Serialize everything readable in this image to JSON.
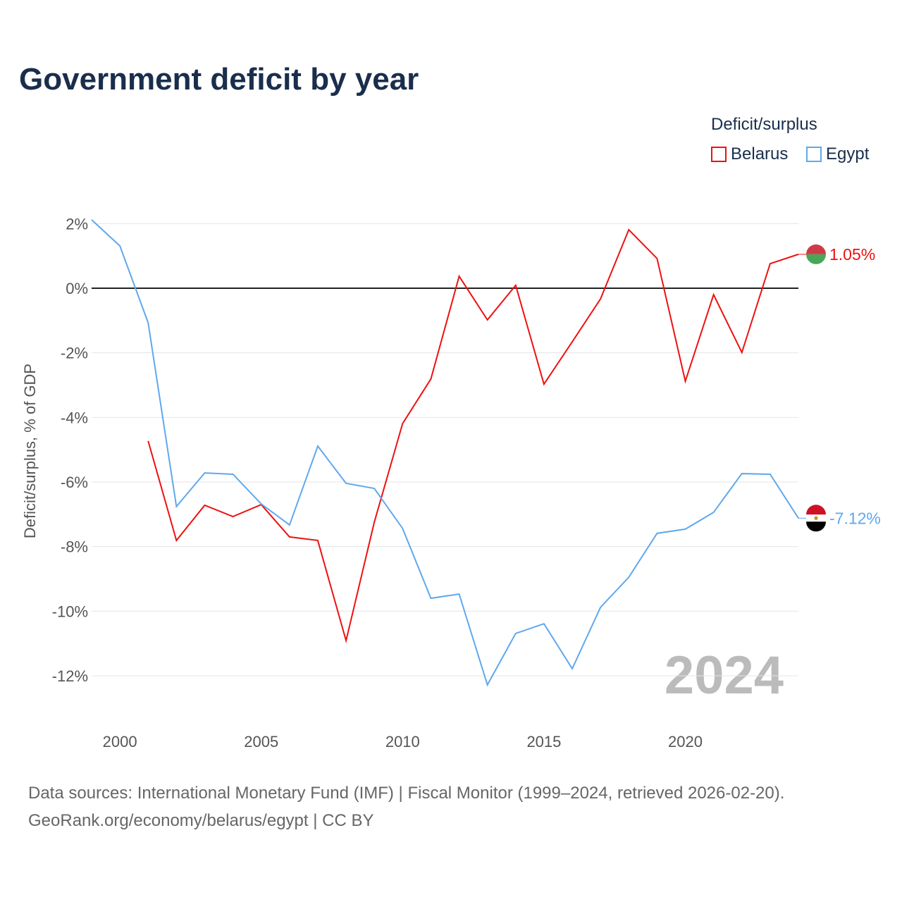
{
  "title": "Government deficit by year",
  "legend": {
    "title": "Deficit/surplus",
    "items": [
      "Belarus",
      "Egypt"
    ]
  },
  "watermark_year": "2024",
  "sources": [
    "Data sources: International Monetary Fund (IMF) | Fiscal Monitor (1999–2024, retrieved 2026-02-20).",
    "GeoRank.org/economy/belarus/egypt | CC BY"
  ],
  "chart_data": {
    "type": "line",
    "title": "Government deficit by year",
    "xlabel": "",
    "ylabel": "Deficit/surplus, % of GDP",
    "xlim": [
      1999,
      2024
    ],
    "ylim": [
      -13.5,
      2.2
    ],
    "xticks": [
      2000,
      2005,
      2010,
      2015,
      2020
    ],
    "yticks": [
      2,
      0,
      -2,
      -4,
      -6,
      -8,
      -10,
      -12
    ],
    "ytick_labels": [
      "2%",
      "0%",
      "-2%",
      "-4%",
      "-6%",
      "-8%",
      "-10%",
      "-12%"
    ],
    "series": [
      {
        "name": "Belarus",
        "color": "#ee1111",
        "end_label": "1.05%",
        "x": [
          2001,
          2002,
          2003,
          2004,
          2005,
          2006,
          2007,
          2008,
          2009,
          2010,
          2011,
          2012,
          2013,
          2014,
          2015,
          2016,
          2017,
          2018,
          2019,
          2020,
          2021,
          2022,
          2023,
          2024
        ],
        "values": [
          -4.73,
          -7.81,
          -6.72,
          -7.07,
          -6.7,
          -7.7,
          -7.81,
          -10.91,
          -7.24,
          -4.19,
          -2.81,
          0.37,
          -0.98,
          0.09,
          -2.97,
          -1.66,
          -0.33,
          1.81,
          0.92,
          -2.88,
          -0.2,
          -1.99,
          0.76,
          1.05
        ]
      },
      {
        "name": "Egypt",
        "color": "#5fa8ee",
        "end_label": "-7.12%",
        "x": [
          1999,
          2000,
          2001,
          2002,
          2003,
          2004,
          2005,
          2006,
          2007,
          2008,
          2009,
          2010,
          2011,
          2012,
          2013,
          2014,
          2015,
          2016,
          2017,
          2018,
          2019,
          2020,
          2021,
          2022,
          2023,
          2024
        ],
        "values": [
          2.12,
          1.31,
          -1.07,
          -6.76,
          -5.72,
          -5.76,
          -6.68,
          -7.33,
          -4.89,
          -6.04,
          -6.2,
          -7.44,
          -9.6,
          -9.47,
          -12.28,
          -10.69,
          -10.39,
          -11.78,
          -9.88,
          -8.95,
          -7.59,
          -7.46,
          -6.94,
          -5.74,
          -5.76,
          -7.12
        ]
      }
    ]
  }
}
